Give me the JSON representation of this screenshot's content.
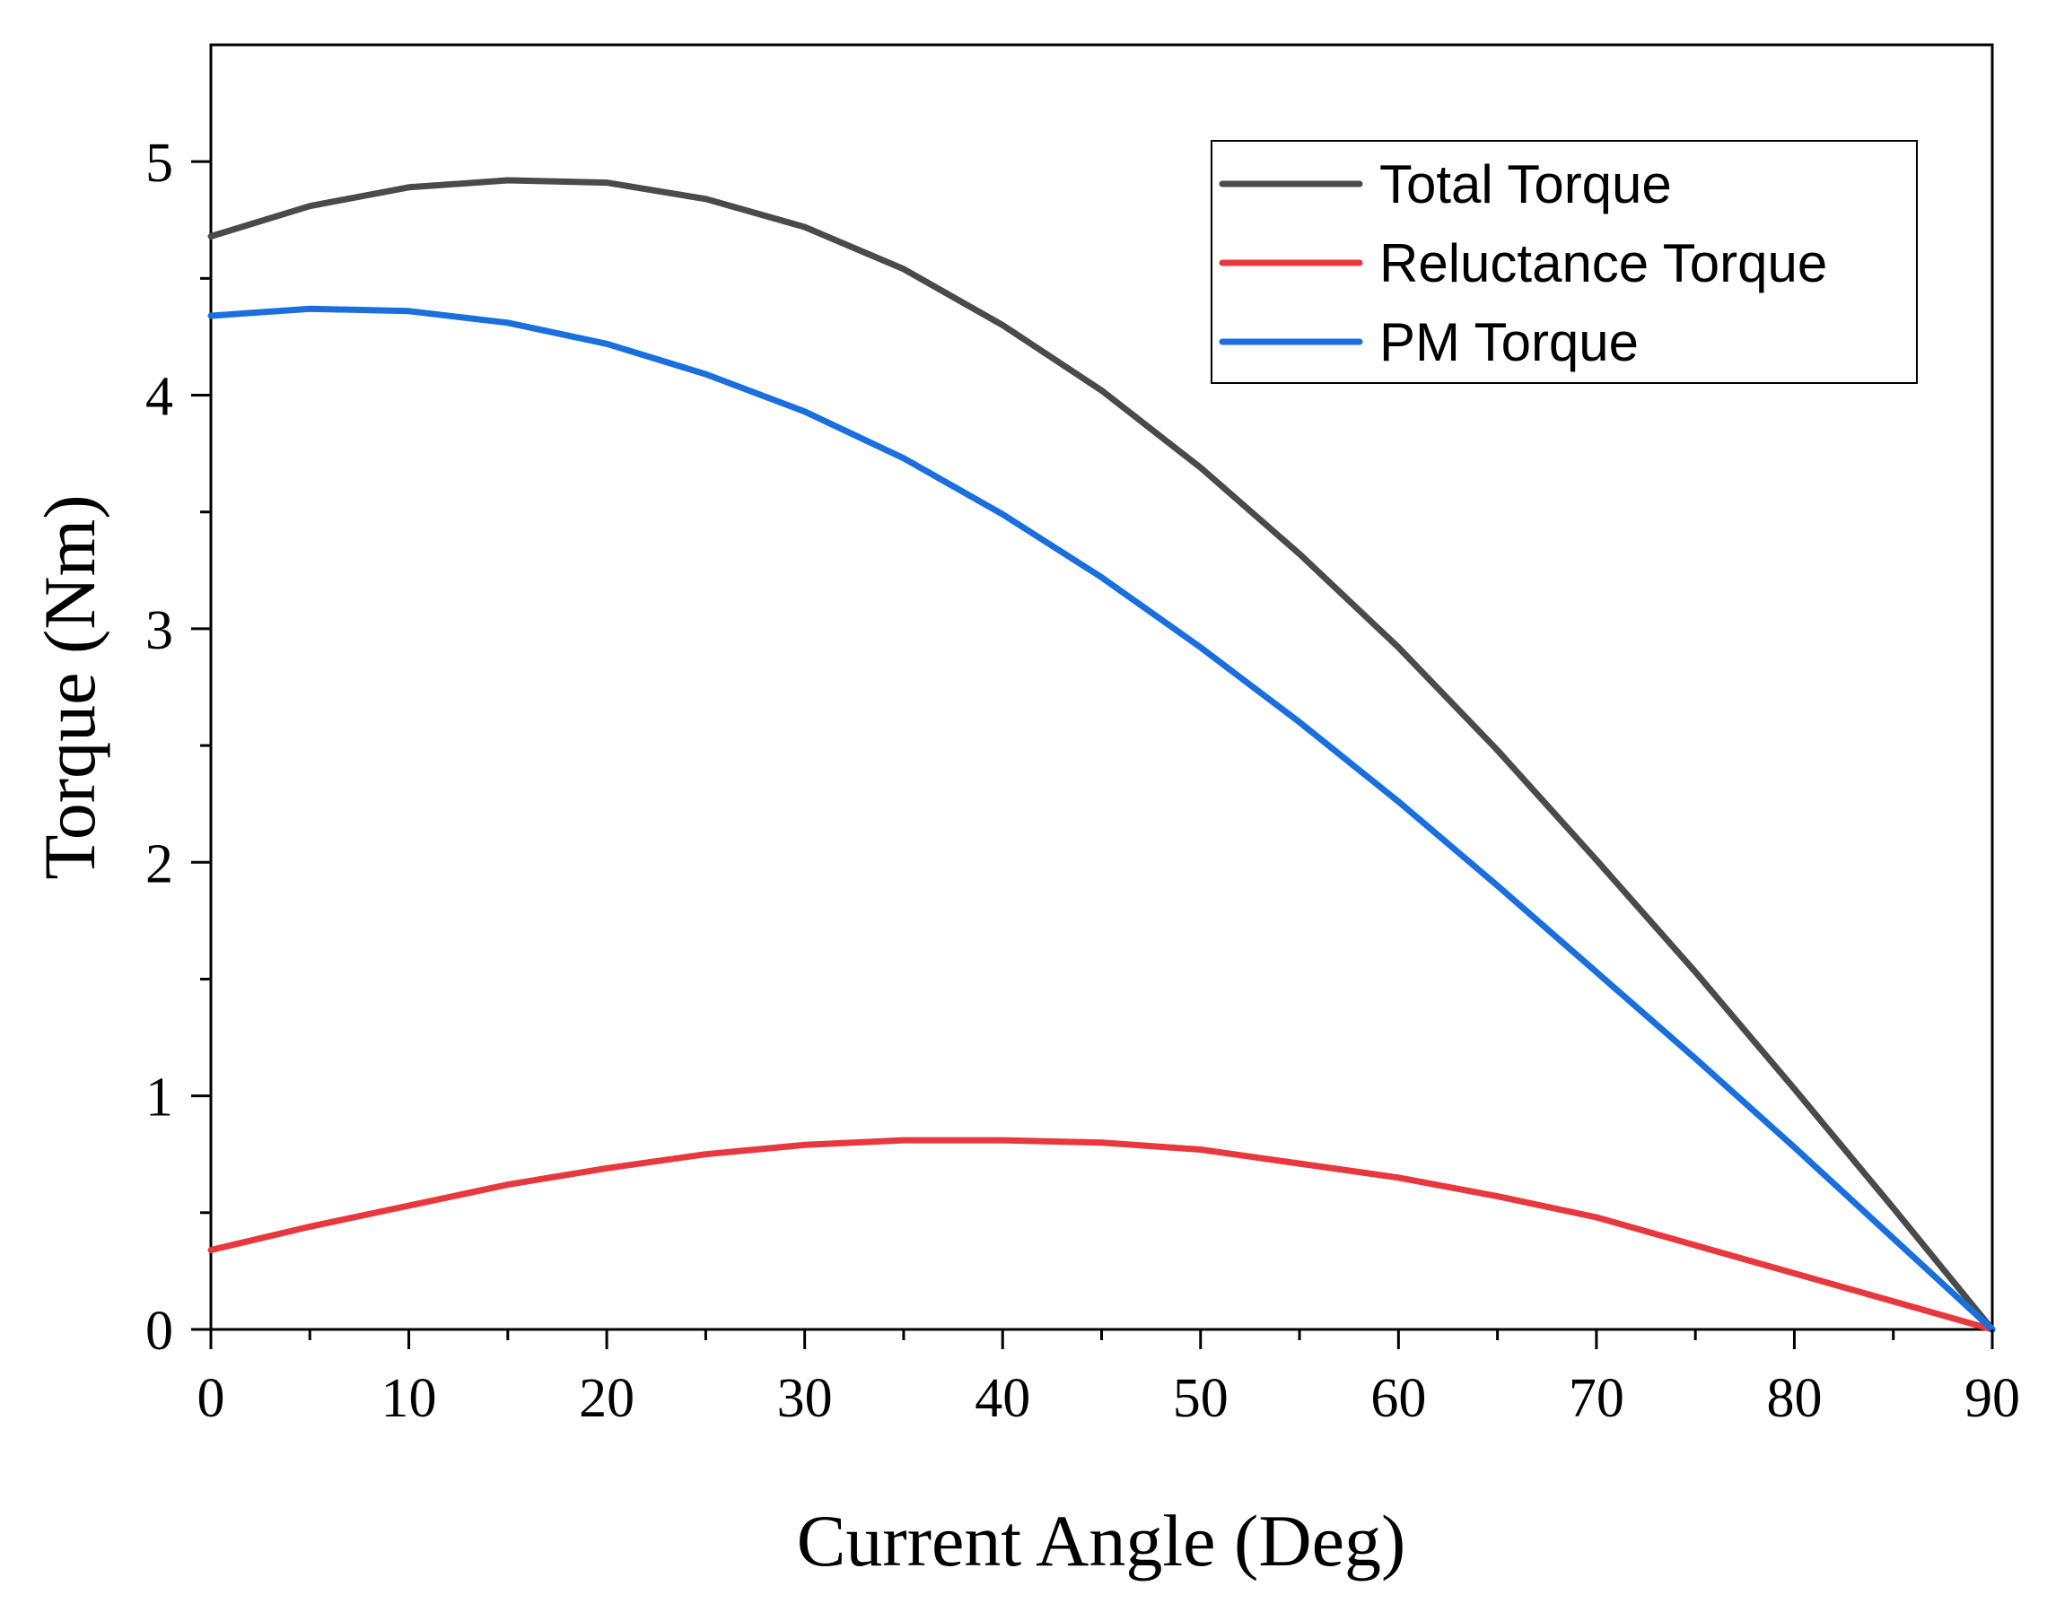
{
  "chart_data": {
    "type": "line",
    "title": "",
    "xlabel": "Current Angle (Deg)",
    "ylabel": "Torque (Nm)",
    "xlim": [
      0,
      90
    ],
    "ylim": [
      0,
      5.5
    ],
    "xticks": [
      0,
      10,
      20,
      30,
      40,
      50,
      60,
      70,
      80,
      90
    ],
    "xtick_labels": [
      "0",
      "10",
      "20",
      "30",
      "40",
      "50",
      "60",
      "70",
      "80",
      "90"
    ],
    "yticks": [
      0,
      1,
      2,
      3,
      4,
      5
    ],
    "ytick_labels": [
      "0",
      "1",
      "2",
      "3",
      "4",
      "5"
    ],
    "grid": false,
    "legend_position": "top-right",
    "x": [
      0,
      5,
      10,
      15,
      20,
      25,
      30,
      35,
      40,
      45,
      50,
      55,
      60,
      65,
      70,
      75,
      80,
      85,
      90
    ],
    "series": [
      {
        "name": "Total Torque",
        "color": "#4a4a4a",
        "values": [
          4.68,
          4.81,
          4.89,
          4.92,
          4.91,
          4.84,
          4.72,
          4.54,
          4.3,
          4.02,
          3.69,
          3.32,
          2.92,
          2.48,
          2.01,
          1.53,
          1.03,
          0.52,
          0.0
        ]
      },
      {
        "name": "Reluctance Torque",
        "color": "#e8383d",
        "values": [
          0.34,
          0.44,
          0.53,
          0.62,
          0.69,
          0.75,
          0.79,
          0.81,
          0.81,
          0.8,
          0.77,
          0.71,
          0.65,
          0.57,
          0.48,
          0.36,
          0.24,
          0.12,
          0.0
        ]
      },
      {
        "name": "PM Torque",
        "color": "#1a6fdf",
        "values": [
          4.34,
          4.37,
          4.36,
          4.31,
          4.22,
          4.09,
          3.93,
          3.73,
          3.49,
          3.22,
          2.92,
          2.6,
          2.26,
          1.9,
          1.53,
          1.16,
          0.78,
          0.39,
          0.0
        ]
      }
    ]
  }
}
